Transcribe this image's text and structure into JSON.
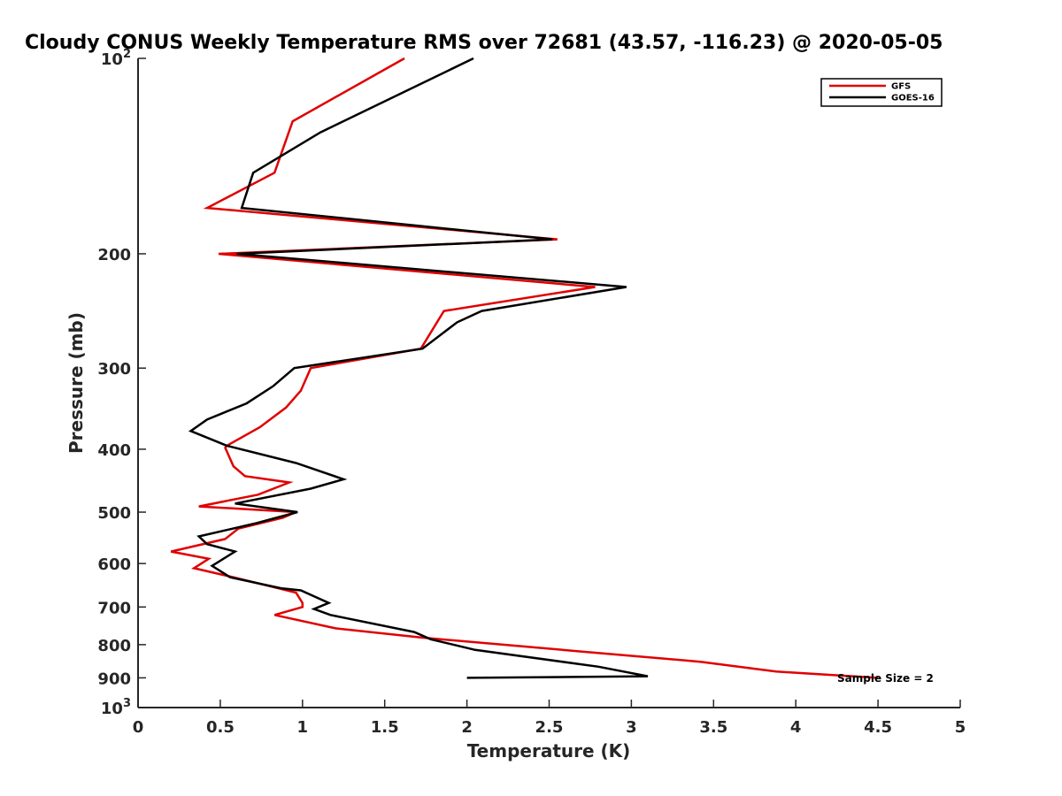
{
  "chart_data": {
    "type": "line",
    "title": "Cloudy CONUS Weekly Temperature RMS over 72681 (43.57, -116.23) @ 2020-05-05",
    "xlabel": "Temperature (K)",
    "ylabel": "Pressure (mb)",
    "xlim": [
      0,
      5
    ],
    "ylim": [
      100,
      1000
    ],
    "yscale": "log",
    "y_reversed": true,
    "xticks": [
      0,
      0.5,
      1,
      1.5,
      2,
      2.5,
      3,
      3.5,
      4,
      4.5,
      5
    ],
    "xtick_labels": [
      "0",
      "0.5",
      "1",
      "1.5",
      "2",
      "2.5",
      "3",
      "3.5",
      "4",
      "4.5",
      "5"
    ],
    "yticks": [
      100,
      200,
      300,
      400,
      500,
      600,
      700,
      800,
      900,
      1000
    ],
    "ytick_labels": [
      "10^2",
      "200",
      "300",
      "400",
      "500",
      "600",
      "700",
      "800",
      "900",
      "10^3"
    ],
    "grid": false,
    "legend_position": "top-right",
    "annotation": "Sample Size = 2",
    "series": [
      {
        "name": "GFS",
        "color": "#e00000",
        "points": [
          [
            1.62,
            100
          ],
          [
            0.94,
            125
          ],
          [
            0.83,
            150
          ],
          [
            0.42,
            170
          ],
          [
            2.55,
            190
          ],
          [
            0.49,
            200
          ],
          [
            2.78,
            225
          ],
          [
            1.86,
            245
          ],
          [
            1.72,
            280
          ],
          [
            1.05,
            300
          ],
          [
            0.99,
            325
          ],
          [
            0.9,
            345
          ],
          [
            0.74,
            370
          ],
          [
            0.54,
            395
          ],
          [
            0.53,
            398
          ],
          [
            0.58,
            425
          ],
          [
            0.65,
            440
          ],
          [
            0.92,
            450
          ],
          [
            0.73,
            470
          ],
          [
            0.37,
            490
          ],
          [
            0.96,
            500
          ],
          [
            0.88,
            510
          ],
          [
            0.61,
            530
          ],
          [
            0.53,
            550
          ],
          [
            0.2,
            575
          ],
          [
            0.43,
            590
          ],
          [
            0.34,
            610
          ],
          [
            0.58,
            630
          ],
          [
            0.96,
            665
          ],
          [
            1.0,
            690
          ],
          [
            1.0,
            700
          ],
          [
            0.83,
            720
          ],
          [
            1.2,
            755
          ],
          [
            1.72,
            780
          ],
          [
            2.7,
            820
          ],
          [
            3.42,
            850
          ],
          [
            3.88,
            880
          ],
          [
            4.5,
            900
          ]
        ]
      },
      {
        "name": "GOES-16",
        "color": "#000000",
        "points": [
          [
            2.04,
            100
          ],
          [
            1.11,
            130
          ],
          [
            0.7,
            150
          ],
          [
            0.63,
            170
          ],
          [
            2.52,
            190
          ],
          [
            0.6,
            200
          ],
          [
            2.97,
            225
          ],
          [
            2.09,
            245
          ],
          [
            1.94,
            255
          ],
          [
            1.73,
            280
          ],
          [
            0.95,
            300
          ],
          [
            0.82,
            320
          ],
          [
            0.66,
            340
          ],
          [
            0.42,
            360
          ],
          [
            0.32,
            375
          ],
          [
            0.54,
            395
          ],
          [
            0.96,
            420
          ],
          [
            1.25,
            445
          ],
          [
            1.05,
            460
          ],
          [
            0.59,
            485
          ],
          [
            0.97,
            500
          ],
          [
            0.72,
            520
          ],
          [
            0.37,
            545
          ],
          [
            0.42,
            560
          ],
          [
            0.59,
            575
          ],
          [
            0.45,
            605
          ],
          [
            0.56,
            630
          ],
          [
            0.87,
            655
          ],
          [
            0.99,
            660
          ],
          [
            1.16,
            690
          ],
          [
            1.07,
            705
          ],
          [
            1.17,
            720
          ],
          [
            1.68,
            765
          ],
          [
            1.78,
            785
          ],
          [
            2.05,
            815
          ],
          [
            2.8,
            865
          ],
          [
            3.1,
            895
          ],
          [
            2.0,
            900
          ]
        ]
      }
    ]
  }
}
